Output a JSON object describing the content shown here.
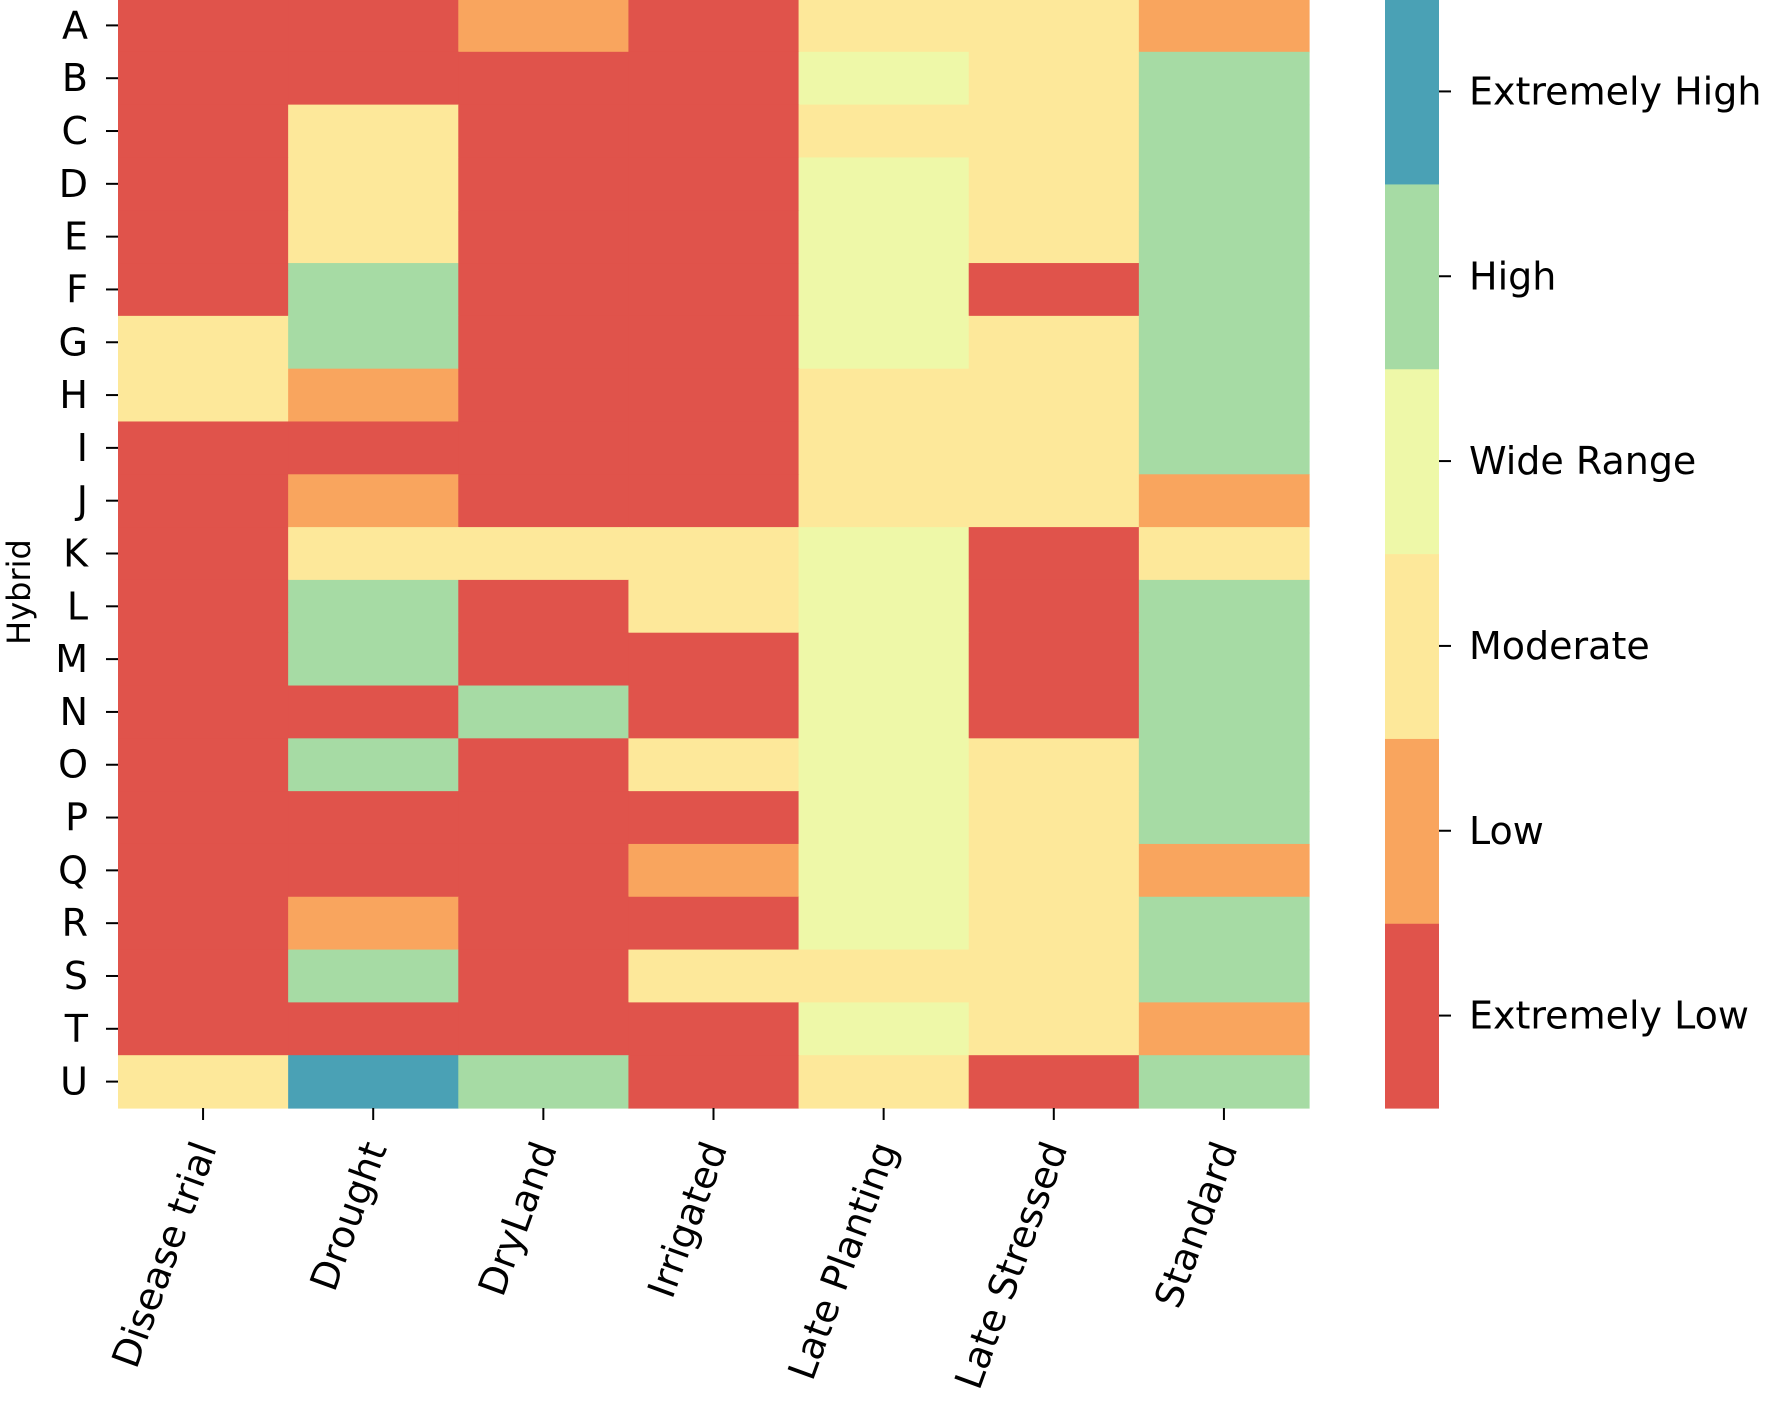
{
  "chart_data": {
    "type": "heatmap",
    "title": "",
    "xlabel": "",
    "ylabel": "Hybrid",
    "columns": [
      "Disease trial",
      "Drought",
      "DryLand",
      "Irrigated",
      "Late Planting",
      "Late Stressed",
      "Standard"
    ],
    "rows": [
      "A",
      "B",
      "C",
      "D",
      "E",
      "F",
      "G",
      "H",
      "I",
      "J",
      "K",
      "L",
      "M",
      "N",
      "O",
      "P",
      "Q",
      "R",
      "S",
      "T",
      "U"
    ],
    "scale": {
      "0": "Extremely Low",
      "1": "Low",
      "2": "Moderate",
      "3": "Wide Range",
      "4": "High",
      "5": "Extremely High"
    },
    "values": [
      [
        0,
        0,
        1,
        0,
        2,
        2,
        1
      ],
      [
        0,
        0,
        0,
        0,
        3,
        2,
        4
      ],
      [
        0,
        2,
        0,
        0,
        2,
        2,
        4
      ],
      [
        0,
        2,
        0,
        0,
        3,
        2,
        4
      ],
      [
        0,
        2,
        0,
        0,
        3,
        2,
        4
      ],
      [
        0,
        4,
        0,
        0,
        3,
        0,
        4
      ],
      [
        2,
        4,
        0,
        0,
        3,
        2,
        4
      ],
      [
        2,
        1,
        0,
        0,
        2,
        2,
        4
      ],
      [
        0,
        0,
        0,
        0,
        2,
        2,
        4
      ],
      [
        0,
        1,
        0,
        0,
        2,
        2,
        1
      ],
      [
        0,
        2,
        2,
        2,
        3,
        0,
        2
      ],
      [
        0,
        4,
        0,
        2,
        3,
        0,
        4
      ],
      [
        0,
        4,
        0,
        0,
        3,
        0,
        4
      ],
      [
        0,
        0,
        4,
        0,
        3,
        0,
        4
      ],
      [
        0,
        4,
        0,
        2,
        3,
        2,
        4
      ],
      [
        0,
        0,
        0,
        0,
        3,
        2,
        4
      ],
      [
        0,
        0,
        0,
        1,
        3,
        2,
        1
      ],
      [
        0,
        1,
        0,
        0,
        3,
        2,
        4
      ],
      [
        0,
        4,
        0,
        2,
        2,
        2,
        4
      ],
      [
        0,
        0,
        0,
        0,
        3,
        2,
        1
      ],
      [
        2,
        5,
        4,
        0,
        2,
        0,
        4
      ]
    ],
    "colorbar": {
      "labels": [
        "Extremely Low",
        "Low",
        "Moderate",
        "Wide Range",
        "High",
        "Extremely High"
      ],
      "colors": [
        "#e0534b",
        "#f9a55e",
        "#fde89a",
        "#eef8a8",
        "#a6dba4",
        "#4aa1b5"
      ]
    },
    "legend_position": "right"
  }
}
